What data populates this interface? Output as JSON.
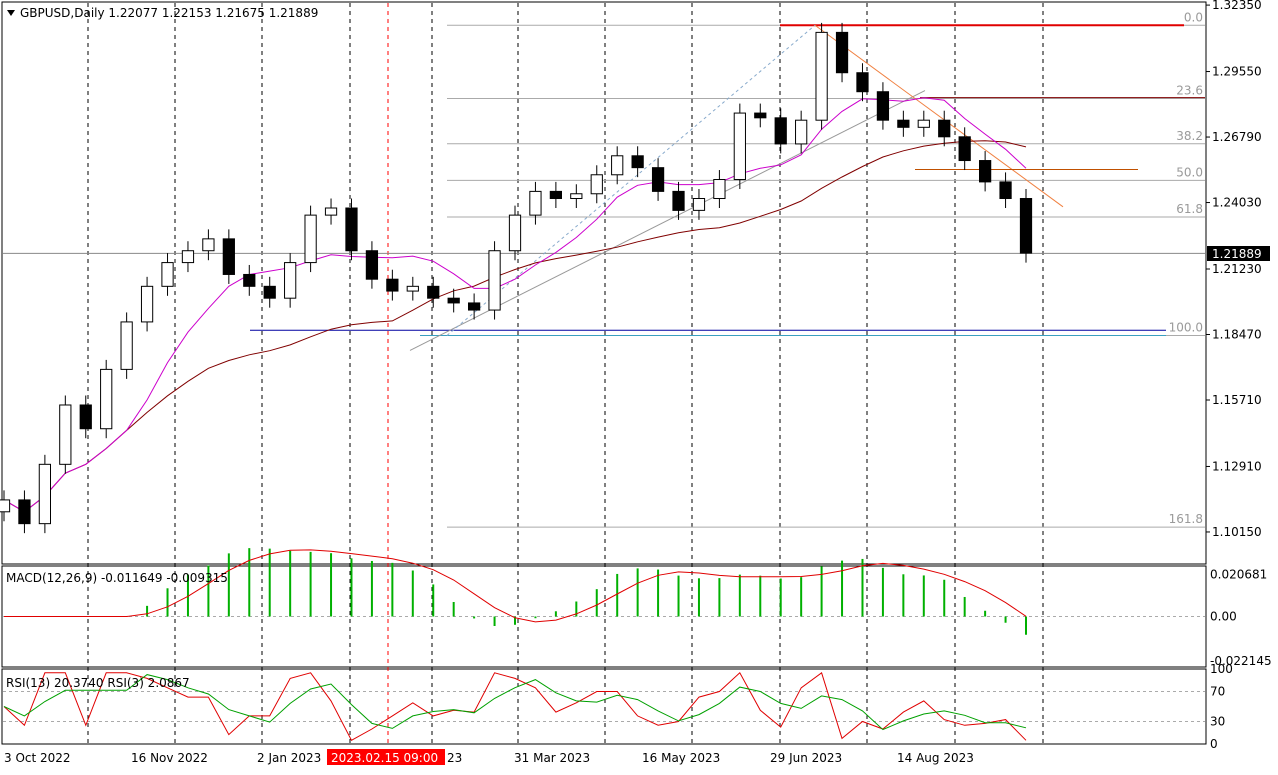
{
  "header": {
    "symbol_line": "GBPUSD,Daily  1.22077 1.22153 1.21675 1.21889",
    "dropdown_icon": "triangle-down-icon"
  },
  "price_axis": {
    "ticks": [
      "1.32350",
      "1.29550",
      "1.26790",
      "1.24030",
      "1.21230",
      "1.18470",
      "1.15710",
      "1.12910",
      "1.10150"
    ],
    "tick_values": [
      1.3235,
      1.2955,
      1.2679,
      1.2403,
      1.2123,
      1.1847,
      1.1571,
      1.1291,
      1.1015
    ],
    "current_price": "1.21889",
    "current_value": 1.21889
  },
  "macd": {
    "label": "MACD(12,26,9) -0.011649 -0.009315",
    "ticks": [
      "0.020681",
      "0.00",
      "-0.022145"
    ],
    "current_main": -0.011649,
    "current_signal": -0.009315
  },
  "rsi": {
    "label": "RSI(13) 20.3740  RSI(3) 2.0867",
    "ticks": [
      "100",
      "70",
      "30",
      "0"
    ],
    "levels": [
      70,
      30
    ]
  },
  "time_axis": {
    "labels": [
      "3 Oct 2022",
      "16 Nov 2022",
      "2 Jan 2023",
      "31 Mar 2023",
      "16 May 2023",
      "29 Jun 2023",
      "14 Aug 2023"
    ],
    "crosshair_label": "2023.02.15 09:00",
    "crosshair_tail": "23"
  },
  "fibonacci": {
    "levels": [
      "0.0",
      "23.6",
      "38.2",
      "50.0",
      "61.8",
      "100.0",
      "161.8"
    ],
    "level_values": [
      0,
      23.6,
      38.2,
      50,
      61.8,
      100,
      161.8
    ],
    "high": 1.315,
    "low": 1.1843
  },
  "colors": {
    "bull_candle": "#ffffff",
    "bear_candle": "#000000",
    "ma_slow": "#800000",
    "ma_fast": "#cc00cc",
    "macd_hist": "#00b000",
    "macd_signal": "#e00000",
    "rsi13": "#00a000",
    "rsi3": "#e00000",
    "fib_high_line": "#e00000",
    "fib_low_line": "#0000a0",
    "orange_line": "#f08040",
    "crosshair": "#ff0000",
    "current_price_bg": "#000000"
  },
  "chart_data": {
    "type": "candlestick",
    "title": "GBPUSD,Daily",
    "ylim": [
      1.088,
      1.3248
    ],
    "series": [
      {
        "name": "GBPUSD",
        "x": [
          "2022-10-03",
          "2022-10-10",
          "2022-10-17",
          "2022-10-24",
          "2022-10-31",
          "2022-11-07",
          "2022-11-14",
          "2022-11-21",
          "2022-11-28",
          "2022-12-05",
          "2022-12-12",
          "2022-12-19",
          "2022-12-26",
          "2023-01-02",
          "2023-01-09",
          "2023-01-16",
          "2023-01-23",
          "2023-01-30",
          "2023-02-06",
          "2023-02-13",
          "2023-02-20",
          "2023-02-27",
          "2023-03-06",
          "2023-03-13",
          "2023-03-20",
          "2023-03-27",
          "2023-04-03",
          "2023-04-10",
          "2023-04-17",
          "2023-04-24",
          "2023-05-01",
          "2023-05-08",
          "2023-05-15",
          "2023-05-22",
          "2023-05-29",
          "2023-06-05",
          "2023-06-12",
          "2023-06-19",
          "2023-06-26",
          "2023-07-03",
          "2023-07-10",
          "2023-07-17",
          "2023-07-24",
          "2023-07-31",
          "2023-08-07",
          "2023-08-14",
          "2023-08-21",
          "2023-08-28",
          "2023-09-04",
          "2023-09-11",
          "2023-09-18"
        ],
        "close": [
          1.115,
          1.105,
          1.13,
          1.155,
          1.145,
          1.17,
          1.19,
          1.205,
          1.215,
          1.22,
          1.225,
          1.21,
          1.205,
          1.2,
          1.215,
          1.235,
          1.238,
          1.22,
          1.208,
          1.203,
          1.205,
          1.2,
          1.198,
          1.195,
          1.22,
          1.235,
          1.245,
          1.242,
          1.244,
          1.252,
          1.26,
          1.255,
          1.245,
          1.237,
          1.242,
          1.25,
          1.278,
          1.276,
          1.265,
          1.275,
          1.312,
          1.295,
          1.287,
          1.275,
          1.272,
          1.275,
          1.268,
          1.258,
          1.249,
          1.242,
          1.219
        ]
      }
    ],
    "annotations": [
      "Fibonacci retracement 0.0 / 23.6 / 38.2 / 50.0 / 61.8 / 100.0 / 161.8",
      "Moving averages (slow, fast)"
    ]
  }
}
